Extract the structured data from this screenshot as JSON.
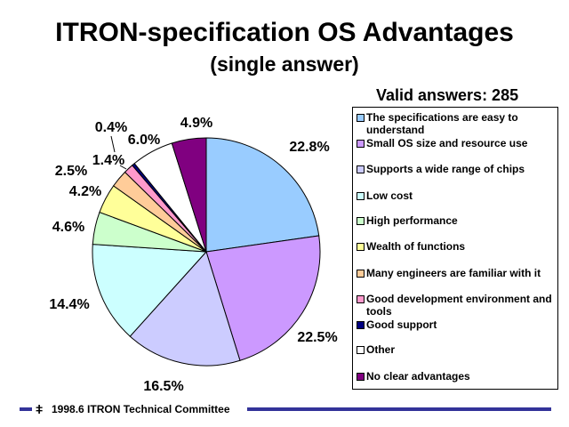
{
  "title": "ITRON-specification OS Advantages",
  "subtitle": "(single answer)",
  "valid_answers": "Valid answers: 285",
  "footer": {
    "text": "1998.6  ITRON Technical Committee"
  },
  "chart_data": {
    "type": "pie",
    "title": "ITRON-specification OS Advantages",
    "subtitle": "(single answer)",
    "legend_position": "right",
    "slices": [
      {
        "label": "The specifications are easy to understand",
        "value": 22.8,
        "value_label": "22.8%",
        "color": "#99CCFF"
      },
      {
        "label": "Small OS size and resource use",
        "value": 22.5,
        "value_label": "22.5%",
        "color": "#CC99FF"
      },
      {
        "label": "Supports a wide range of chips",
        "value": 16.5,
        "value_label": "16.5%",
        "color": "#CCCCFF"
      },
      {
        "label": "Low cost",
        "value": 14.4,
        "value_label": "14.4%",
        "color": "#CCFFFF"
      },
      {
        "label": "High performance",
        "value": 4.6,
        "value_label": "4.6%",
        "color": "#CCFFCC"
      },
      {
        "label": "Wealth of functions",
        "value": 4.2,
        "value_label": "4.2%",
        "color": "#FFFF99"
      },
      {
        "label": "Many engineers are familiar with it",
        "value": 2.5,
        "value_label": "2.5%",
        "color": "#FFCC99"
      },
      {
        "label": "Good development environment and tools",
        "value": 1.4,
        "value_label": "1.4%",
        "color": "#FF99CC"
      },
      {
        "label": "Good support",
        "value": 0.4,
        "value_label": "0.4%",
        "color": "#000080"
      },
      {
        "label": "Other",
        "value": 6.0,
        "value_label": "6.0%",
        "color": "#FFFFFF"
      },
      {
        "label": "No clear advantages",
        "value": 4.9,
        "value_label": "4.9%",
        "color": "#800080"
      }
    ]
  }
}
